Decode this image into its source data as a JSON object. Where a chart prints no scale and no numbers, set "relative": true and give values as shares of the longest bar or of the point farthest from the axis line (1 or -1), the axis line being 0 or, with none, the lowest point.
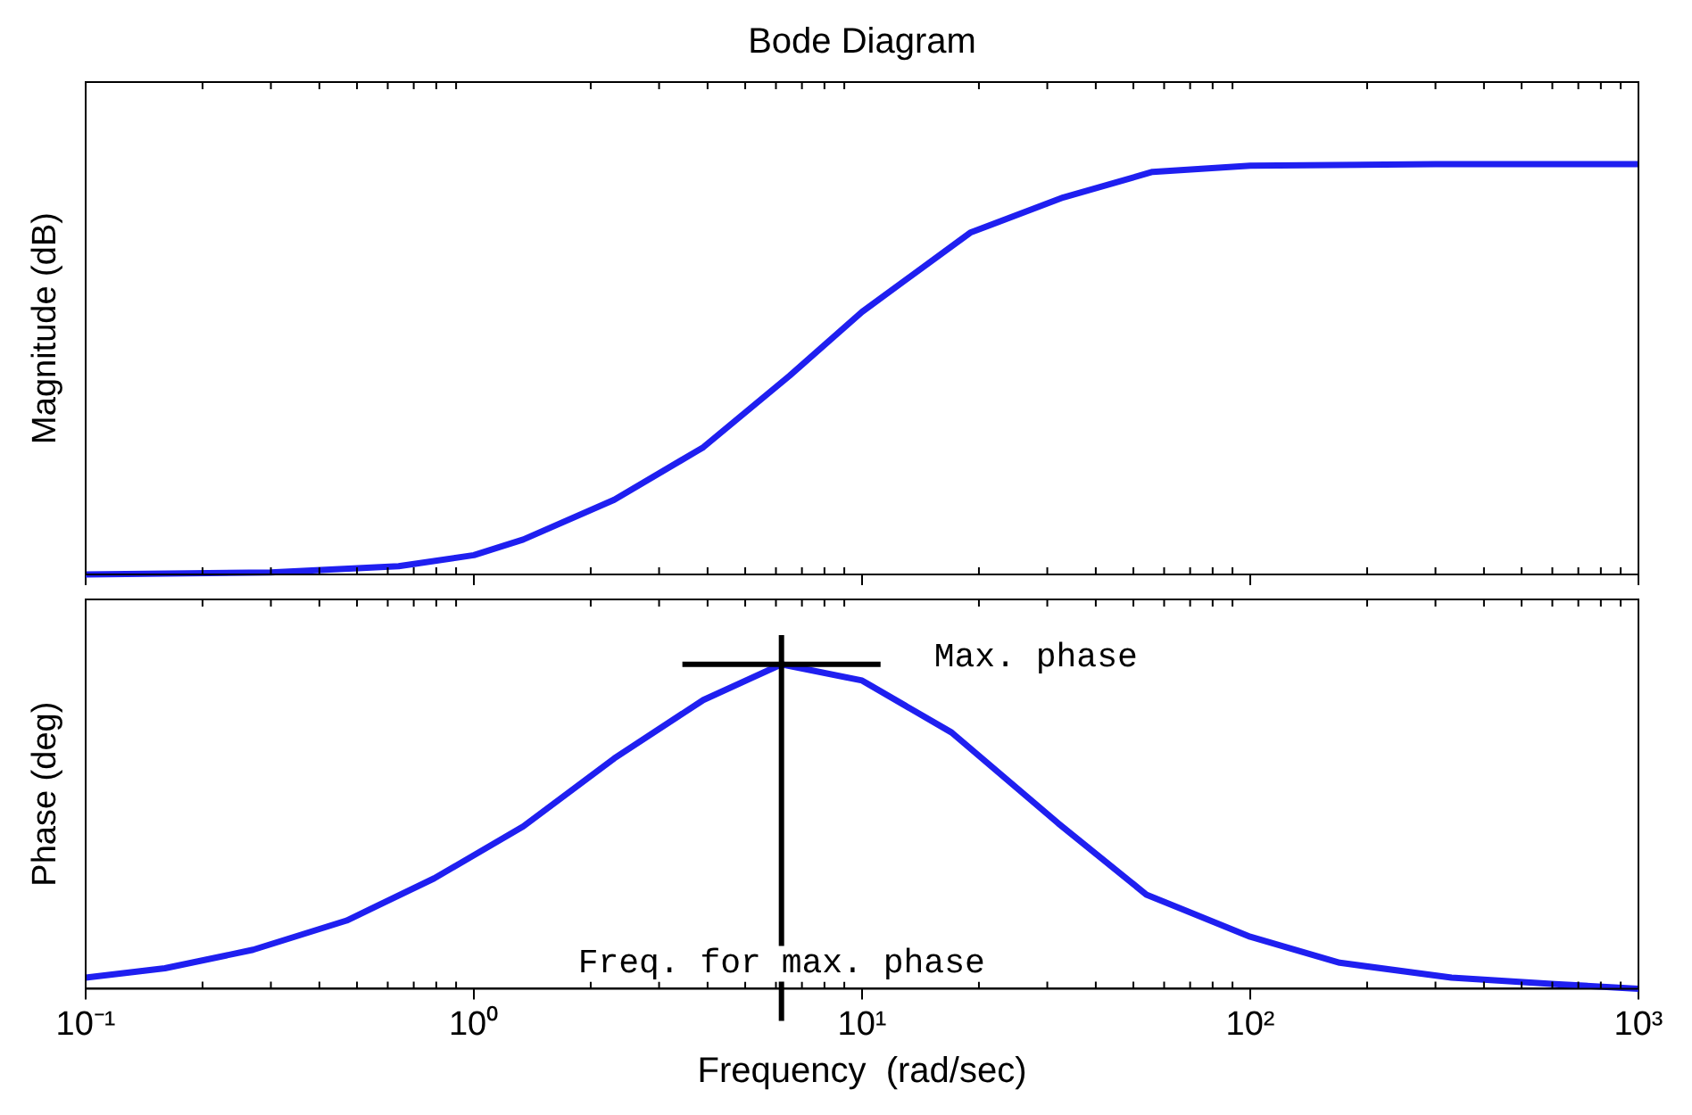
{
  "chart_data": [
    {
      "type": "line",
      "title": "Bode Diagram",
      "ylabel": "Magnitude (dB)",
      "relative": true,
      "log": "x",
      "xlim": [
        0.1,
        1000
      ],
      "xticks": [
        {
          "value": 0.1,
          "label": null
        },
        {
          "value": 1,
          "label": null
        },
        {
          "value": 10,
          "label": null
        },
        {
          "value": 100,
          "label": null
        },
        {
          "value": 1000,
          "label": null
        }
      ],
      "tick_labels": false,
      "grid": false,
      "legend": false,
      "marker": "none",
      "line_style": "solid",
      "series": [
        {
          "color": "#1f1ff0",
          "x": [
            0.1,
            0.3,
            0.64,
            1,
            1.34,
            2.3,
            3.9,
            6.5,
            10,
            19,
            33,
            56,
            100,
            300,
            1000
          ],
          "values": [
            0,
            0.005,
            0.02,
            0.047,
            0.085,
            0.182,
            0.31,
            0.484,
            0.64,
            0.833,
            0.919,
            0.981,
            0.996,
            1,
            1
          ]
        }
      ]
    },
    {
      "type": "line",
      "xlabel": "Frequency  (rad/sec)",
      "ylabel": "Phase (deg)",
      "relative": true,
      "log": "x",
      "xlim": [
        0.1,
        1000
      ],
      "xticks": [
        {
          "value": 0.1,
          "label": "10⁻¹"
        },
        {
          "value": 1,
          "label": "10⁰"
        },
        {
          "value": 10,
          "label": "10¹"
        },
        {
          "value": 100,
          "label": "10²"
        },
        {
          "value": 1000,
          "label": "10³"
        }
      ],
      "tick_labels": "x",
      "grid": false,
      "legend": false,
      "marker": "none",
      "line_style": "solid",
      "ref_lines": [
        {
          "axis": "x",
          "value": 6.2,
          "label": "Freq. for max. phase",
          "color": "#000000"
        },
        {
          "axis": "y",
          "value": 1,
          "label": "Max. phase",
          "color": "#000000"
        }
      ],
      "series": [
        {
          "color": "#1f1ff0",
          "x": [
            0.1,
            0.16,
            0.27,
            0.47,
            0.79,
            1.34,
            2.3,
            3.9,
            6.2,
            10,
            17,
            32,
            54,
            100,
            170,
            330,
            610,
            1000
          ],
          "values": [
            0.034,
            0.063,
            0.12,
            0.21,
            0.34,
            0.5,
            0.71,
            0.89,
            1,
            0.95,
            0.79,
            0.51,
            0.29,
            0.16,
            0.08,
            0.034,
            0.014,
            0
          ]
        }
      ]
    }
  ]
}
